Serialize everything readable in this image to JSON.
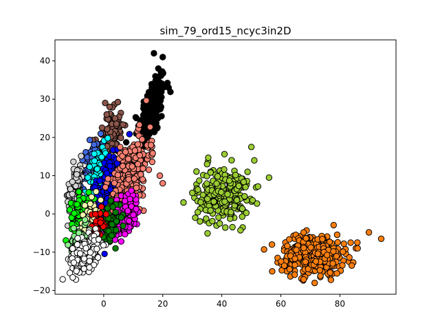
{
  "chart_data": {
    "type": "scatter",
    "title": "sim_79_ord15_ncyc3in2D",
    "xlabel": "",
    "ylabel": "",
    "xlim": [
      -16.5,
      99
    ],
    "ylim": [
      -21,
      45.5
    ],
    "x_ticks": [
      0,
      20,
      40,
      60,
      80
    ],
    "y_ticks": [
      -20,
      -10,
      0,
      10,
      20,
      30,
      40
    ],
    "grid": false,
    "legend": "none",
    "marker_edge_color": "#000000",
    "series": [
      {
        "color": "#000000",
        "n": 200,
        "cx": 16.5,
        "cy": 27.5,
        "sx": 2.2,
        "sy": 4.8,
        "rho": 0.55,
        "extra": [
          [
            17,
            42
          ],
          [
            20,
            41
          ],
          [
            18.5,
            38
          ],
          [
            17.5,
            36
          ],
          [
            19,
            32
          ],
          [
            13,
            24
          ],
          [
            22,
            33
          ],
          [
            11,
            21
          ],
          [
            14,
            19
          ]
        ]
      },
      {
        "color": "#8c564b",
        "n": 120,
        "cx": 1.5,
        "cy": 19.5,
        "sx": 2.4,
        "sy": 3.6,
        "rho": 0.5,
        "extra": [
          [
            0.5,
            29
          ],
          [
            2,
            28
          ],
          [
            1,
            26
          ]
        ]
      },
      {
        "color": "#4169e1",
        "n": 70,
        "cx": -4.5,
        "cy": 12.5,
        "sx": 1.8,
        "sy": 3.2,
        "rho": 0.5,
        "extra": []
      },
      {
        "color": "#00ffff",
        "n": 80,
        "cx": -2.5,
        "cy": 10,
        "sx": 1.8,
        "sy": 3.5,
        "rho": 0.5,
        "extra": []
      },
      {
        "color": "#0000ff",
        "n": 200,
        "cx": 1.5,
        "cy": 6.5,
        "sx": 2.4,
        "sy": 5.0,
        "rho": 0.6,
        "extra": []
      },
      {
        "color": "#fa8072",
        "n": 300,
        "cx": 9,
        "cy": 10,
        "sx": 3.3,
        "sy": 5.2,
        "rho": 0.55,
        "extra": [
          [
            19,
            10
          ],
          [
            20,
            8
          ],
          [
            13,
            19.5
          ],
          [
            16,
            18
          ]
        ]
      },
      {
        "color": "#ff00ff",
        "n": 150,
        "cx": 7.5,
        "cy": 0,
        "sx": 2.6,
        "sy": 3.4,
        "rho": 0.55,
        "extra": []
      },
      {
        "color": "#d3d3d3",
        "n": 100,
        "cx": -9.5,
        "cy": 7,
        "sx": 1.3,
        "sy": 3.5,
        "rho": 0.3,
        "extra": []
      },
      {
        "color": "#00ff00",
        "n": 60,
        "cx": -8,
        "cy": 0.5,
        "sx": 1.5,
        "sy": 2.5,
        "rho": 0.3,
        "extra": []
      },
      {
        "color": "#f5f5b0",
        "n": 60,
        "cx": -4.5,
        "cy": -2,
        "sx": 1.8,
        "sy": 2.8,
        "rho": 0.4,
        "extra": []
      },
      {
        "color": "#008000",
        "n": 60,
        "cx": 2,
        "cy": -2.5,
        "sx": 2.0,
        "sy": 2.5,
        "rho": 0.4,
        "extra": [
          [
            4,
            -9
          ]
        ]
      },
      {
        "color": "#ff0000",
        "n": 30,
        "cx": -2,
        "cy": -3,
        "sx": 1.6,
        "sy": 2.5,
        "rho": 0.3,
        "extra": []
      },
      {
        "color": "#90ee90",
        "n": 50,
        "cx": -8.5,
        "cy": -6.5,
        "sx": 1.5,
        "sy": 2.5,
        "rho": 0.3,
        "extra": []
      },
      {
        "color": "#ffffff",
        "n": 200,
        "cx": -6.5,
        "cy": -10.5,
        "sx": 2.5,
        "sy": 2.3,
        "rho": 0.4,
        "extra": []
      },
      {
        "color": "#9acd32",
        "n": 250,
        "cx": 40.5,
        "cy": 5,
        "sx": 4.5,
        "sy": 3.7,
        "rho": 0.1,
        "extra": [
          [
            50,
            17.5
          ],
          [
            51,
            14
          ],
          [
            56,
            9.5
          ],
          [
            31,
            -1
          ],
          [
            30,
            5.5
          ],
          [
            35,
            13
          ]
        ]
      },
      {
        "color": "#ff7f0e",
        "n": 400,
        "cx": 71,
        "cy": -10.5,
        "sx": 5.2,
        "sy": 2.6,
        "rho": 0.0,
        "extra": [
          [
            94,
            -6.5
          ],
          [
            86,
            -9
          ],
          [
            57,
            -8
          ],
          [
            84,
            -13.5
          ]
        ]
      }
    ]
  }
}
